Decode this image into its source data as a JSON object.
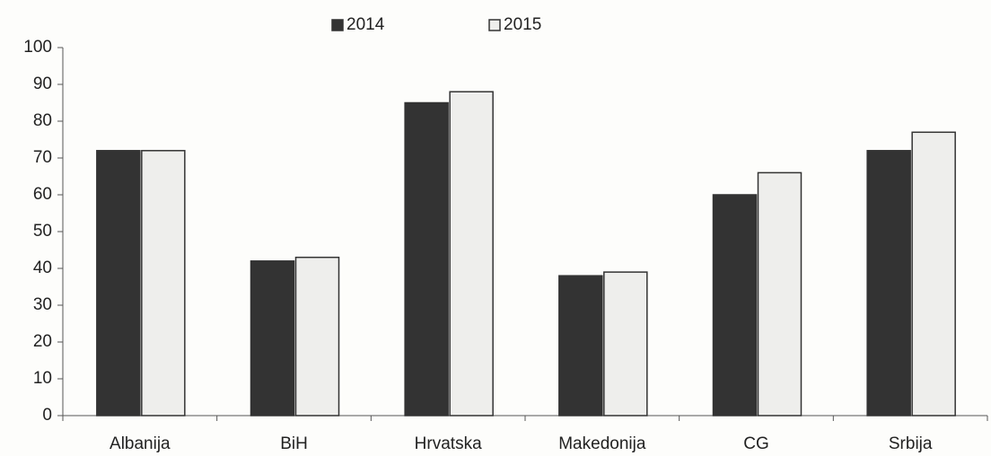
{
  "chart_data": {
    "type": "bar",
    "categories": [
      "Albanija",
      "BiH",
      "Hrvatska",
      "Makedonija",
      "CG",
      "Srbija"
    ],
    "series": [
      {
        "name": "2014",
        "color": "#333333",
        "values": [
          72,
          42,
          85,
          38,
          60,
          72
        ]
      },
      {
        "name": "2015",
        "color": "#eeeeec",
        "values": [
          72,
          43,
          88,
          39,
          66,
          77
        ]
      }
    ],
    "ylim": [
      0,
      100
    ],
    "yticks": [
      0,
      10,
      20,
      30,
      40,
      50,
      60,
      70,
      80,
      90,
      100
    ],
    "grid": false,
    "legend": "top"
  }
}
